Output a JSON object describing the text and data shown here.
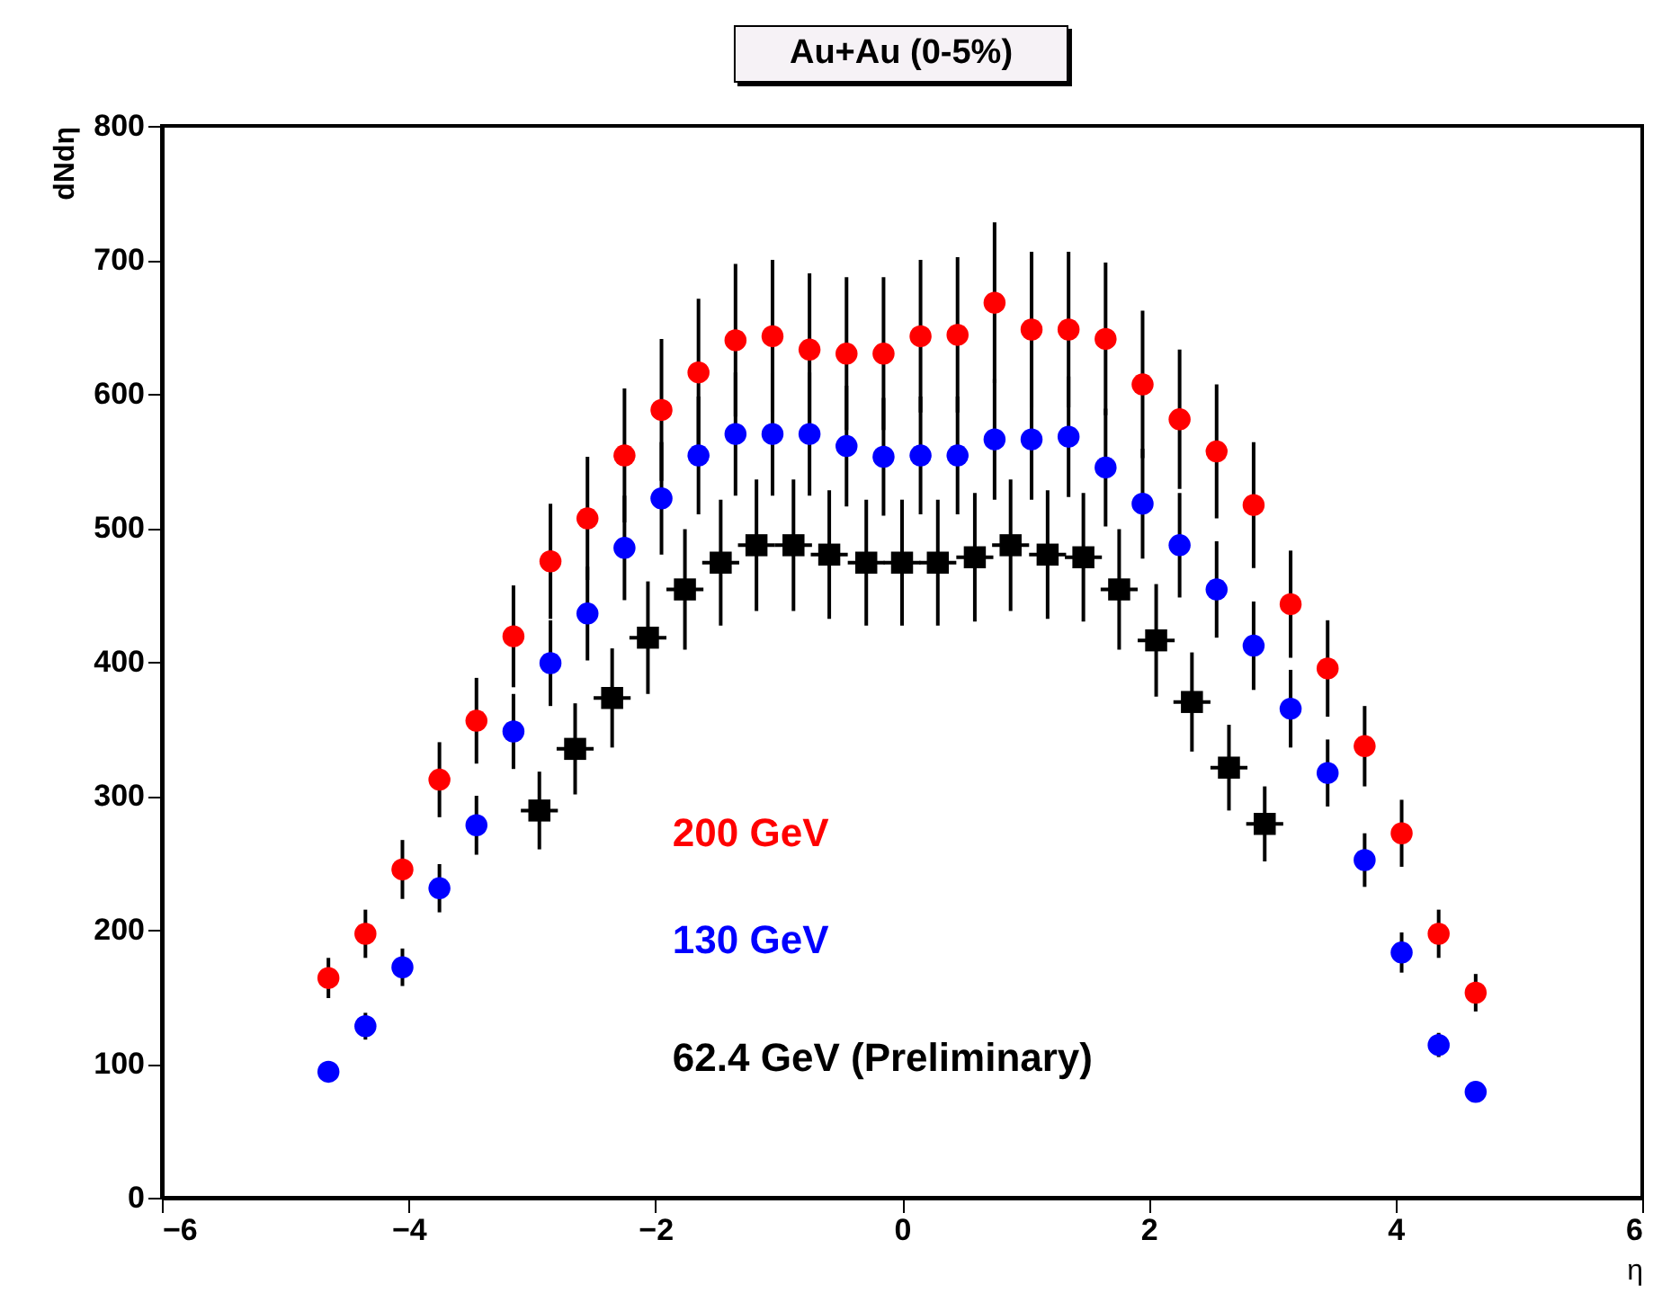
{
  "chart_data": {
    "type": "scatter",
    "title": "Au+Au (0-5%)",
    "xlabel": "η",
    "ylabel": "dNdη",
    "xlim": [
      -6,
      6
    ],
    "xticks": [
      -6,
      -4,
      -2,
      0,
      2,
      4,
      6
    ],
    "ylim": [
      0,
      800
    ],
    "yticks": [
      0,
      100,
      200,
      300,
      400,
      500,
      600,
      700,
      800
    ],
    "legend": "bottom",
    "series": [
      {
        "name": "200 GeV",
        "color": "#ff0000",
        "marker": "circle",
        "x": [
          -4.65,
          -4.35,
          -4.05,
          -3.75,
          -3.45,
          -3.15,
          -2.85,
          -2.55,
          -2.25,
          -1.95,
          -1.65,
          -1.35,
          -1.05,
          -0.75,
          -0.45,
          -0.15,
          0.15,
          0.45,
          0.75,
          1.05,
          1.35,
          1.65,
          1.95,
          2.25,
          2.55,
          2.85,
          3.15,
          3.45,
          3.75,
          4.05,
          4.35,
          4.65
        ],
        "values": [
          164,
          197,
          245,
          312,
          356,
          419,
          475,
          507,
          554,
          588,
          616,
          640,
          643,
          633,
          630,
          630,
          643,
          644,
          668,
          648,
          648,
          641,
          607,
          581,
          557,
          517,
          443,
          395,
          337,
          272,
          197,
          153
        ],
        "errors": [
          15,
          18,
          22,
          28,
          32,
          38,
          43,
          46,
          50,
          53,
          55,
          57,
          57,
          57,
          57,
          57,
          57,
          58,
          60,
          58,
          58,
          57,
          55,
          52,
          50,
          47,
          40,
          36,
          30,
          25,
          18,
          14
        ]
      },
      {
        "name": "130 GeV",
        "color": "#0000ff",
        "marker": "circle",
        "x": [
          -4.65,
          -4.35,
          -4.05,
          -3.75,
          -3.45,
          -3.15,
          -2.85,
          -2.55,
          -2.25,
          -1.95,
          -1.65,
          -1.35,
          -1.05,
          -0.75,
          -0.45,
          -0.15,
          0.15,
          0.45,
          0.75,
          1.05,
          1.35,
          1.65,
          1.95,
          2.25,
          2.55,
          2.85,
          3.15,
          3.45,
          3.75,
          4.05,
          4.35,
          4.65
        ],
        "values": [
          94,
          128,
          172,
          231,
          278,
          348,
          399,
          436,
          485,
          522,
          554,
          570,
          570,
          570,
          561,
          553,
          554,
          554,
          566,
          566,
          568,
          545,
          518,
          487,
          454,
          412,
          365,
          317,
          252,
          183,
          114,
          79
        ],
        "errors": [
          null,
          10,
          14,
          18,
          22,
          28,
          32,
          35,
          39,
          42,
          44,
          46,
          46,
          46,
          45,
          44,
          44,
          44,
          45,
          45,
          45,
          44,
          41,
          39,
          36,
          33,
          29,
          25,
          20,
          15,
          9,
          null
        ]
      },
      {
        "name": "62.4 GeV (Preliminary)",
        "color": "#000000",
        "marker": "square",
        "x": [
          -2.94,
          -2.65,
          -2.35,
          -2.06,
          -1.76,
          -1.47,
          -1.18,
          -0.88,
          -0.59,
          -0.29,
          0,
          0.29,
          0.59,
          0.88,
          1.18,
          1.47,
          1.76,
          2.06,
          2.35,
          2.65,
          2.94
        ],
        "values": [
          289,
          335,
          373,
          418,
          454,
          474,
          487,
          487,
          480,
          474,
          474,
          474,
          478,
          487,
          480,
          478,
          454,
          416,
          370,
          321,
          279
        ],
        "errors": [
          29,
          34,
          37,
          42,
          45,
          47,
          49,
          49,
          48,
          47,
          47,
          47,
          48,
          49,
          48,
          48,
          45,
          42,
          37,
          32,
          28
        ],
        "xerrors": [
          0.15,
          0.15,
          0.15,
          0.15,
          0.15,
          0.15,
          0.15,
          0.15,
          0.15,
          0.15,
          0.15,
          0.15,
          0.15,
          0.15,
          0.15,
          0.15,
          0.15,
          0.15,
          0.15,
          0.15,
          0.15
        ]
      }
    ]
  }
}
